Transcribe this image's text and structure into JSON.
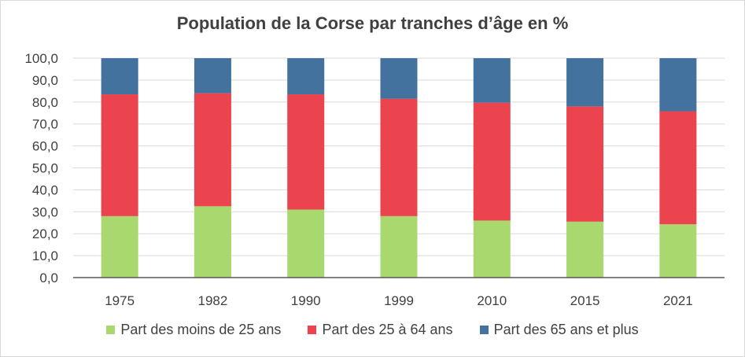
{
  "chart_data": {
    "type": "bar",
    "stacked": true,
    "title": "Population de la Corse par tranches d’âge en  %",
    "xlabel": "",
    "ylabel": "",
    "categories": [
      "1975",
      "1982",
      "1990",
      "1999",
      "2010",
      "2015",
      "2021"
    ],
    "ylim": [
      0,
      100
    ],
    "yticks": [
      "0,0",
      "10,0",
      "20,0",
      "30,0",
      "40,0",
      "50,0",
      "60,0",
      "70,0",
      "80,0",
      "90,0",
      "100,0"
    ],
    "grid": true,
    "legend_position": "bottom",
    "series": [
      {
        "name": "Part des moins de 25 ans",
        "color": "#a9d86e",
        "values": [
          28.0,
          32.5,
          31.0,
          28.0,
          26.0,
          25.5,
          24.3
        ]
      },
      {
        "name": "Part des 25 à 64 ans",
        "color": "#ec444e",
        "values": [
          55.5,
          51.5,
          52.5,
          53.5,
          53.7,
          52.5,
          51.5
        ]
      },
      {
        "name": "Part des 65 ans et plus",
        "color": "#44729e",
        "values": [
          16.5,
          16.0,
          16.5,
          18.5,
          20.3,
          22.0,
          24.2
        ]
      }
    ]
  }
}
